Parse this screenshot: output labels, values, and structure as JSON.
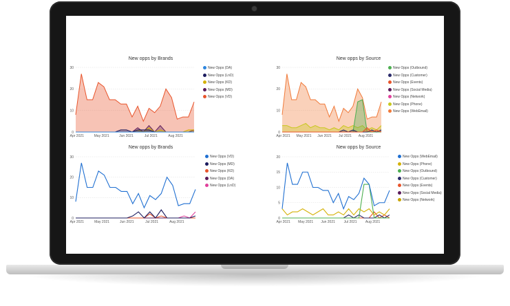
{
  "device": {
    "type": "laptop"
  },
  "dashboard": {
    "charts": [
      {
        "id": "area-brands",
        "type": "area",
        "title": "New opps by Brands",
        "x_ticks": [
          "Apr 2021",
          "May 2021",
          "Jun 2021",
          "Jul 2021",
          "Aug 2021"
        ],
        "y_ticks": [
          "0",
          "10",
          "20",
          "30"
        ],
        "ylim": [
          0,
          30
        ],
        "legend": [
          {
            "label": "New Opps (DA)",
            "color": "#2e86de"
          },
          {
            "label": "New Opps (LnD)",
            "color": "#1b1b5e"
          },
          {
            "label": "New Opps (KD)",
            "color": "#d4b106"
          },
          {
            "label": "New Opps (MD)",
            "color": "#5a1a5a"
          },
          {
            "label": "New Opps (VD)",
            "color": "#e8542b"
          }
        ]
      },
      {
        "id": "area-source",
        "type": "area",
        "title": "New opps by Source",
        "x_ticks": [
          "Apr 2021",
          "May 2021",
          "Jun 2021",
          "Jul 2021",
          "Aug 2021"
        ],
        "y_ticks": [
          "0",
          "10",
          "20",
          "30"
        ],
        "ylim": [
          0,
          30
        ],
        "legend": [
          {
            "label": "New Opps (Outbound)",
            "color": "#4caf50"
          },
          {
            "label": "New Opps (Customer)",
            "color": "#2a2a6a"
          },
          {
            "label": "New Opps (Events)",
            "color": "#e8542b"
          },
          {
            "label": "New Opps (Social Media)",
            "color": "#5a1a5a"
          },
          {
            "label": "New Opps (Network)",
            "color": "#e0409b"
          },
          {
            "label": "New Opps (Phone)",
            "color": "#c8c81e"
          },
          {
            "label": "New Opps (WebEmail)",
            "color": "#f07a3a"
          }
        ]
      },
      {
        "id": "line-brands",
        "type": "line",
        "title": "New opps by Brands",
        "x_ticks": [
          "Apr 2021",
          "May 2021",
          "Jun 2021",
          "Jul 2021",
          "Aug 2021"
        ],
        "y_ticks": [
          "0",
          "10",
          "20",
          "30"
        ],
        "ylim": [
          0,
          30
        ],
        "legend": [
          {
            "label": "New Opps (VD)",
            "color": "#1f6fd1"
          },
          {
            "label": "New Opps (MD)",
            "color": "#1b1b5e"
          },
          {
            "label": "New Opps (KD)",
            "color": "#e8542b"
          },
          {
            "label": "New Opps (DA)",
            "color": "#5a1a5a"
          },
          {
            "label": "New Opps (LnD)",
            "color": "#e0409b"
          }
        ]
      },
      {
        "id": "line-source",
        "type": "line",
        "title": "New opps by Source",
        "x_ticks": [
          "Apr 2021",
          "May 2021",
          "Jun 2021",
          "Jul 2021",
          "Aug 2021"
        ],
        "y_ticks": [
          "0",
          "5",
          "10",
          "15",
          "20"
        ],
        "ylim": [
          0,
          20
        ],
        "legend": [
          {
            "label": "New Opps (WebEmail)",
            "color": "#1f6fd1"
          },
          {
            "label": "New Opps (Phone)",
            "color": "#d4b106"
          },
          {
            "label": "New Opps (Outbound)",
            "color": "#4caf50"
          },
          {
            "label": "New Opps (Customer)",
            "color": "#2a2a6a"
          },
          {
            "label": "New Opps (Events)",
            "color": "#e8542b"
          },
          {
            "label": "New Opps (Social Media)",
            "color": "#5a1a5a"
          },
          {
            "label": "New Opps (Network)",
            "color": "#c8a400"
          }
        ]
      }
    ]
  },
  "chart_data": [
    {
      "type": "area",
      "title": "New opps by Brands",
      "ylim": [
        0,
        30
      ],
      "x": [
        "Apr 1",
        "Apr 8",
        "Apr 15",
        "Apr 22",
        "Apr 29",
        "May 6",
        "May 13",
        "May 20",
        "May 27",
        "Jun 3",
        "Jun 10",
        "Jun 17",
        "Jun 24",
        "Jul 1",
        "Jul 8",
        "Jul 15",
        "Jul 22",
        "Jul 29",
        "Aug 5",
        "Aug 12",
        "Aug 19",
        "Aug 26"
      ],
      "series": [
        {
          "name": "New Opps (VD)",
          "values": [
            8,
            27,
            15,
            15,
            23,
            21,
            15,
            15,
            13,
            13,
            7,
            12,
            5,
            11,
            9,
            12,
            20,
            16,
            6,
            7,
            7,
            14
          ]
        },
        {
          "name": "New Opps (MD)",
          "values": [
            0,
            0,
            0,
            0,
            0,
            0,
            0,
            0,
            0,
            0,
            0,
            2,
            0,
            3,
            0,
            3,
            0,
            0,
            0,
            0,
            0,
            1
          ]
        },
        {
          "name": "New Opps (KD)",
          "values": [
            0,
            0,
            0,
            0,
            0,
            0,
            0,
            0,
            0,
            0,
            0,
            1,
            0,
            2,
            0,
            1,
            0,
            0,
            0,
            0,
            1,
            1
          ]
        },
        {
          "name": "New Opps (LnD)",
          "values": [
            0,
            0,
            0,
            0,
            0,
            0,
            0,
            0,
            1,
            1,
            0,
            1,
            1,
            1,
            0,
            0,
            0,
            0,
            0,
            0,
            0,
            0
          ]
        },
        {
          "name": "New Opps (DA)",
          "values": [
            0,
            0,
            0,
            0,
            0,
            0,
            0,
            0,
            0,
            0,
            0,
            0,
            0,
            0,
            0,
            0,
            0,
            0,
            0,
            0,
            0,
            0
          ]
        }
      ]
    },
    {
      "type": "area",
      "title": "New opps by Source",
      "ylim": [
        0,
        30
      ],
      "x": [
        "Apr 1",
        "Apr 8",
        "Apr 15",
        "Apr 22",
        "Apr 29",
        "May 6",
        "May 13",
        "May 20",
        "May 27",
        "Jun 3",
        "Jun 10",
        "Jun 17",
        "Jun 24",
        "Jul 1",
        "Jul 8",
        "Jul 15",
        "Jul 22",
        "Jul 29",
        "Aug 5",
        "Aug 12",
        "Aug 19",
        "Aug 26"
      ],
      "series": [
        {
          "name": "New Opps (WebEmail)",
          "values": [
            8,
            27,
            15,
            15,
            23,
            21,
            15,
            15,
            13,
            13,
            7,
            12,
            5,
            11,
            9,
            12,
            20,
            16,
            6,
            7,
            7,
            14
          ]
        },
        {
          "name": "New Opps (Phone)",
          "values": [
            3,
            3,
            2,
            2,
            3,
            4,
            2,
            3,
            2,
            2,
            1,
            2,
            1,
            3,
            2,
            3,
            2,
            3,
            1,
            2,
            1,
            3
          ]
        },
        {
          "name": "New Opps (Outbound)",
          "values": [
            0,
            0,
            0,
            0,
            0,
            0,
            0,
            0,
            0,
            0,
            0,
            0,
            0,
            0,
            0,
            0,
            14,
            15,
            0,
            0,
            0,
            0
          ]
        },
        {
          "name": "New Opps (Customer)",
          "values": [
            0,
            0,
            0,
            0,
            0,
            0,
            0,
            0,
            0,
            0,
            0,
            0,
            0,
            1,
            0,
            1,
            0,
            0,
            0,
            1,
            0,
            1
          ]
        },
        {
          "name": "New Opps (Events)",
          "values": [
            0,
            0,
            0,
            0,
            0,
            0,
            0,
            0,
            0,
            0,
            0,
            0,
            0,
            0,
            0,
            0,
            0,
            0,
            2,
            0,
            1,
            0
          ]
        }
      ]
    },
    {
      "type": "line",
      "title": "New opps by Brands",
      "ylim": [
        0,
        30
      ],
      "x": [
        "Apr 1",
        "Apr 8",
        "Apr 15",
        "Apr 22",
        "Apr 29",
        "May 6",
        "May 13",
        "May 20",
        "May 27",
        "Jun 3",
        "Jun 10",
        "Jun 17",
        "Jun 24",
        "Jul 1",
        "Jul 8",
        "Jul 15",
        "Jul 22",
        "Jul 29",
        "Aug 5",
        "Aug 12",
        "Aug 19",
        "Aug 26"
      ],
      "series": [
        {
          "name": "New Opps (VD)",
          "values": [
            8,
            27,
            15,
            15,
            23,
            21,
            15,
            15,
            13,
            13,
            7,
            12,
            5,
            11,
            9,
            12,
            20,
            16,
            6,
            7,
            7,
            14
          ]
        },
        {
          "name": "New Opps (MD)",
          "values": [
            0,
            0,
            0,
            0,
            0,
            0,
            0,
            0,
            0,
            0,
            1,
            3,
            0,
            3,
            0,
            4,
            0,
            0,
            0,
            0,
            0,
            1
          ]
        },
        {
          "name": "New Opps (KD)",
          "values": [
            0,
            0,
            0,
            0,
            0,
            0,
            0,
            0,
            0,
            0,
            0,
            0,
            0,
            2,
            0,
            1,
            0,
            0,
            0,
            0,
            0,
            0
          ]
        },
        {
          "name": "New Opps (DA)",
          "values": [
            0,
            0,
            0,
            0,
            0,
            0,
            0,
            0,
            0,
            0,
            0,
            0,
            0,
            0,
            0,
            0,
            0,
            0,
            0,
            0,
            0,
            0
          ]
        },
        {
          "name": "New Opps (LnD)",
          "values": [
            0,
            0,
            0,
            0,
            0,
            0,
            0,
            0,
            0,
            0,
            0,
            0,
            0,
            0,
            0,
            0,
            0,
            0,
            0,
            1,
            0,
            3
          ]
        }
      ]
    },
    {
      "type": "line",
      "title": "New opps by Source",
      "ylim": [
        0,
        20
      ],
      "x": [
        "Apr 1",
        "Apr 8",
        "Apr 15",
        "Apr 22",
        "Apr 29",
        "May 6",
        "May 13",
        "May 20",
        "May 27",
        "Jun 3",
        "Jun 10",
        "Jun 17",
        "Jun 24",
        "Jul 1",
        "Jul 8",
        "Jul 15",
        "Jul 22",
        "Jul 29",
        "Aug 5",
        "Aug 12",
        "Aug 19",
        "Aug 26"
      ],
      "series": [
        {
          "name": "New Opps (WebEmail)",
          "values": [
            3,
            18,
            11,
            11,
            15,
            15,
            10,
            10,
            9,
            9,
            5,
            8,
            3,
            7,
            6,
            8,
            13,
            11,
            4,
            5,
            5,
            9
          ]
        },
        {
          "name": "New Opps (Phone)",
          "values": [
            3,
            1,
            2,
            2,
            3,
            2,
            1,
            2,
            3,
            1,
            1,
            2,
            1,
            3,
            1,
            3,
            2,
            3,
            1,
            2,
            1,
            3
          ]
        },
        {
          "name": "New Opps (Outbound)",
          "values": [
            0,
            0,
            0,
            0,
            0,
            0,
            0,
            0,
            0,
            0,
            0,
            0,
            0,
            0,
            0,
            0,
            11,
            11,
            0,
            0,
            0,
            0
          ]
        },
        {
          "name": "New Opps (Customer)",
          "values": [
            0,
            0,
            0,
            0,
            0,
            0,
            0,
            0,
            0,
            0,
            0,
            0,
            0,
            1,
            0,
            1,
            0,
            0,
            0,
            1,
            0,
            1
          ]
        },
        {
          "name": "New Opps (Events)",
          "values": [
            0,
            0,
            0,
            0,
            0,
            0,
            0,
            0,
            0,
            0,
            0,
            0,
            0,
            0,
            0,
            0,
            0,
            0,
            2,
            0,
            1,
            0
          ]
        }
      ]
    }
  ]
}
